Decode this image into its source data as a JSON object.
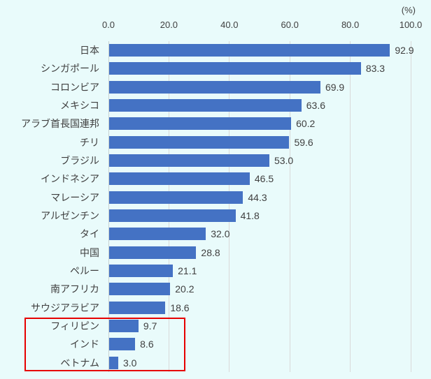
{
  "chart_data": {
    "type": "bar",
    "orientation": "horizontal",
    "title": "",
    "unit_label": "(%)",
    "categories": [
      "日本",
      "シンガポール",
      "コロンビア",
      "メキシコ",
      "アラブ首長国連邦",
      "チリ",
      "ブラジル",
      "インドネシア",
      "マレーシア",
      "アルゼンチン",
      "タイ",
      "中国",
      "ペルー",
      "南アフリカ",
      "サウジアラビア",
      "フィリピン",
      "インド",
      "ベトナム"
    ],
    "values": [
      92.9,
      83.3,
      69.9,
      63.6,
      60.2,
      59.6,
      53.0,
      46.5,
      44.3,
      41.8,
      32.0,
      28.8,
      21.1,
      20.2,
      18.6,
      9.7,
      8.6,
      3.0
    ],
    "value_labels": [
      "92.9",
      "83.3",
      "69.9",
      "63.6",
      "60.2",
      "59.6",
      "53.0",
      "46.5",
      "44.3",
      "41.8",
      "32.0",
      "28.8",
      "21.1",
      "20.2",
      "18.6",
      "9.7",
      "8.6",
      "3.0"
    ],
    "x_ticks": [
      "0.0",
      "20.0",
      "40.0",
      "60.0",
      "80.0",
      "100.0"
    ],
    "x_tick_values": [
      0,
      20,
      40,
      60,
      80,
      100
    ],
    "xlim": [
      0,
      100
    ],
    "grid": true,
    "legend": false,
    "highlighted_categories": [
      "フィリピン",
      "インド",
      "ベトナム"
    ],
    "colors": {
      "bar": "#4472C4",
      "background": "#E9FBFB",
      "gridline": "#D9D9D9",
      "text": "#3F3F3F",
      "highlight_box": "#E60000"
    }
  }
}
